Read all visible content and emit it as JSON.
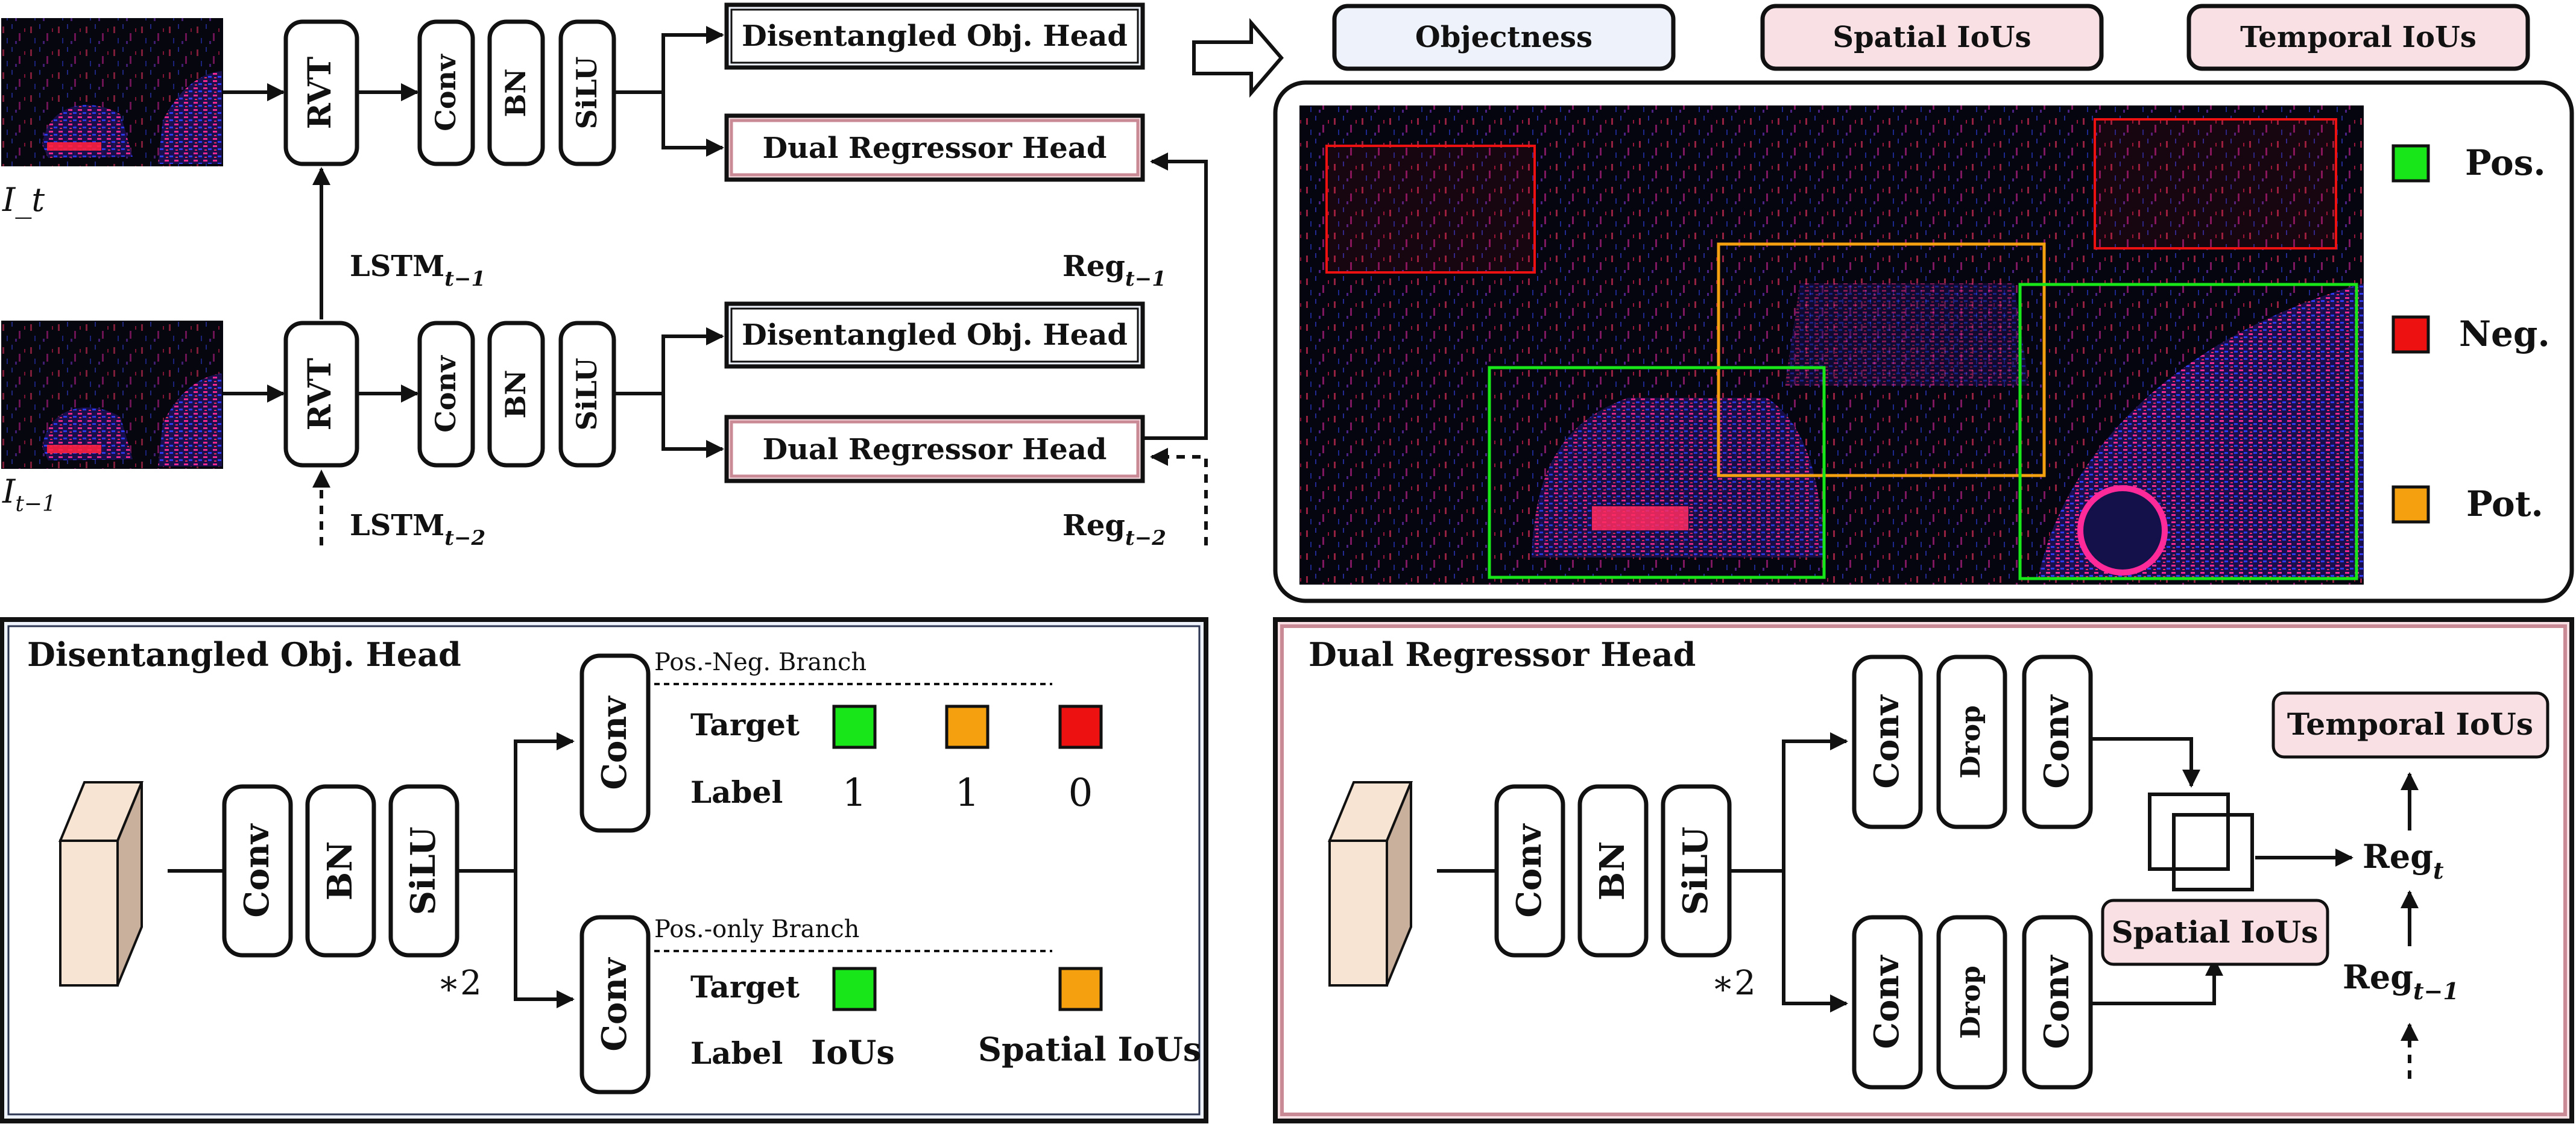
{
  "colors": {
    "pos": "#19e619",
    "neg": "#ee1111",
    "pot": "#f5a10f",
    "objectness_fill": "#eef2fb",
    "iou_fill": "#f9e0e4",
    "dual_border": "#c98a96",
    "obj_border": "#2b3552",
    "scene_bg": "#060610"
  },
  "top": {
    "frame_t": "I_t",
    "frame_t_sub": "",
    "frame_prev": "I",
    "frame_prev_sub": "t−1",
    "rvt": "RVT",
    "conv": "Conv",
    "bn": "BN",
    "silu": "SiLU",
    "obj_head": "Disentangled Obj. Head",
    "dual_head": "Dual Regressor Head",
    "lstm_prev": "LSTM",
    "lstm_prev_sub": "t−1",
    "lstm_prev2": "LSTM",
    "lstm_prev2_sub": "t−2",
    "reg_prev": "Reg",
    "reg_prev_sub": "t−1",
    "reg_prev2": "Reg",
    "reg_prev2_sub": "t−2"
  },
  "legend_top": {
    "objectness": "Objectness",
    "spatial": "Spatial IoUs",
    "temporal": "Temporal IoUs"
  },
  "legend_right": {
    "pos": "Pos.",
    "neg": "Neg.",
    "pot": "Pot."
  },
  "obj_panel": {
    "title": "Disentangled Obj. Head",
    "conv": "Conv",
    "bn": "BN",
    "silu": "SiLU",
    "mult": "∗2",
    "branch1": "Pos.-Neg. Branch",
    "branch2": "Pos.-only Branch",
    "target": "Target",
    "label": "Label",
    "label_vals": [
      "1",
      "1",
      "0"
    ],
    "label_ious": "IoUs",
    "label_spatial": "Spatial IoUs"
  },
  "dual_panel": {
    "title": "Dual Regressor Head",
    "conv": "Conv",
    "bn": "BN",
    "silu": "SiLU",
    "drop": "Drop",
    "mult": "∗2",
    "temporal": "Temporal IoUs",
    "spatial": "Spatial IoUs",
    "reg_t": "Reg",
    "reg_t_sub": "t",
    "reg_prev": "Reg",
    "reg_prev_sub": "t−1"
  }
}
